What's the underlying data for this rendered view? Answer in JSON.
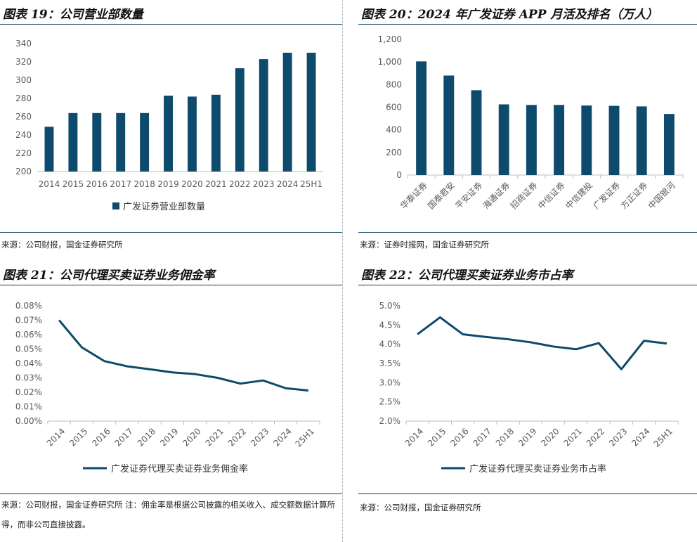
{
  "colors": {
    "series": "#0d4a6b",
    "rule": "#0d3f5c",
    "axis": "#bfbfbf",
    "text": "#595959"
  },
  "charts": {
    "c19": {
      "title": "图表 19：公司营业部数量",
      "source": "来源：公司财报，国金证券研究所",
      "chart_data": {
        "type": "bar",
        "categories": [
          "2014",
          "2015",
          "2016",
          "2017",
          "2018",
          "2019",
          "2020",
          "2021",
          "2022",
          "2023",
          "2024",
          "25H1"
        ],
        "series": [
          {
            "name": "广发证券营业部数量",
            "values": [
              249,
              264,
              264,
              264,
              264,
              283,
              282,
              284,
              313,
              323,
              330,
              330
            ]
          }
        ],
        "ylim": [
          200,
          340
        ],
        "yticks": [
          "200",
          "220",
          "240",
          "260",
          "280",
          "300",
          "320",
          "340"
        ],
        "ytick_values": [
          200,
          220,
          240,
          260,
          280,
          300,
          320,
          340
        ],
        "legend": "bottom"
      }
    },
    "c20": {
      "title": "图表 20：2024 年广发证券 APP 月活及排名（万人）",
      "source": "来源：证券时报网，国金证券研究所",
      "chart_data": {
        "type": "bar",
        "categories": [
          "华泰证券",
          "国泰君安",
          "平安证券",
          "海通证券",
          "招商证券",
          "中信证券",
          "中信建投",
          "广发证券",
          "方正证券",
          "中国银河"
        ],
        "series": [
          {
            "name": "月活",
            "values": [
              1005,
              880,
              750,
              625,
              620,
              620,
              615,
              612,
              607,
              540
            ]
          }
        ],
        "ylim": [
          0,
          1200
        ],
        "yticks": [
          "0",
          "200",
          "400",
          "600",
          "800",
          "1,000",
          "1,200"
        ],
        "ytick_values": [
          0,
          200,
          400,
          600,
          800,
          1000,
          1200
        ],
        "legend": "none"
      }
    },
    "c21": {
      "title": "图表 21：公司代理买卖证券业务佣金率",
      "source": "来源：公司财报，国金证券研究所 注：佣金率是根据公司披露的相关收入、成交额数据计算所得，而非公司直接披露。",
      "chart_data": {
        "type": "line",
        "categories": [
          "2014",
          "2015",
          "2016",
          "2017",
          "2018",
          "2019",
          "2020",
          "2021",
          "2022",
          "2023",
          "2024",
          "25H1"
        ],
        "series": [
          {
            "name": "广发证券代理买卖证券业务佣金率",
            "values": [
              0.07,
              0.0512,
              0.0416,
              0.038,
              0.036,
              0.0338,
              0.0326,
              0.03,
              0.026,
              0.0282,
              0.0228,
              0.0212
            ]
          }
        ],
        "ylim": [
          0,
          0.08
        ],
        "yticks": [
          "0.00%",
          "0.01%",
          "0.02%",
          "0.03%",
          "0.04%",
          "0.05%",
          "0.06%",
          "0.07%",
          "0.08%"
        ],
        "ytick_values": [
          0,
          0.01,
          0.02,
          0.03,
          0.04,
          0.05,
          0.06,
          0.07,
          0.08
        ],
        "legend": "bottom"
      }
    },
    "c22": {
      "title": "图表 22：公司代理买卖证券业务市占率",
      "source": "来源：公司财报，国金证券研究所",
      "chart_data": {
        "type": "line",
        "categories": [
          "2014",
          "2015",
          "2016",
          "2017",
          "2018",
          "2019",
          "2020",
          "2021",
          "2022",
          "2023",
          "2024",
          "25H1"
        ],
        "series": [
          {
            "name": "广发证券代理买卖证券业务市占率",
            "values": [
              4.26,
              4.7,
              4.26,
              4.19,
              4.13,
              4.05,
              3.94,
              3.87,
              4.03,
              3.35,
              4.09,
              4.02
            ]
          }
        ],
        "ylim": [
          2.0,
          5.0
        ],
        "yticks": [
          "2.0%",
          "2.5%",
          "3.0%",
          "3.5%",
          "4.0%",
          "4.5%",
          "5.0%"
        ],
        "ytick_values": [
          2.0,
          2.5,
          3.0,
          3.5,
          4.0,
          4.5,
          5.0
        ],
        "legend": "bottom"
      }
    }
  }
}
